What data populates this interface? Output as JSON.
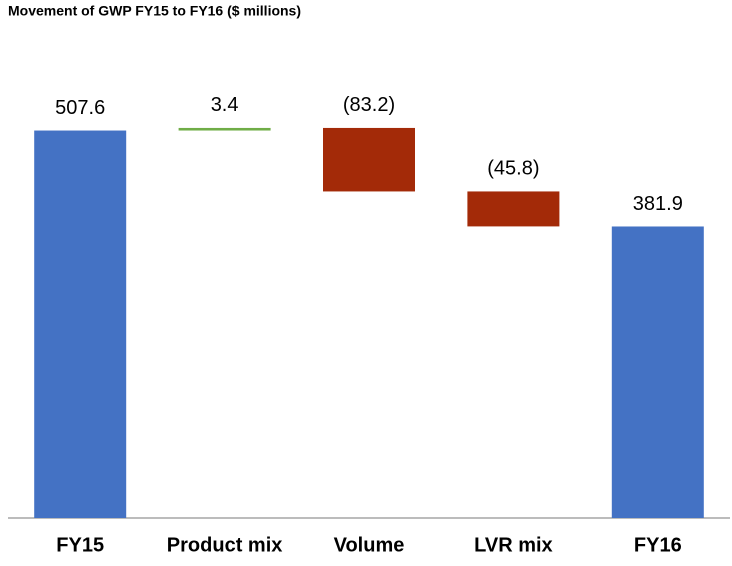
{
  "chart_data": {
    "type": "waterfall",
    "title": "Movement of GWP FY15 to FY16 ($ millions)",
    "categories": [
      "FY15",
      "Product mix",
      "Volume",
      "LVR mix",
      "FY16"
    ],
    "values": [
      507.6,
      3.4,
      -83.2,
      -45.8,
      381.9
    ],
    "value_labels": [
      "507.6",
      "3.4",
      "(83.2)",
      "(45.8)",
      "381.9"
    ],
    "colors": [
      "#4472c4",
      "#70ad47",
      "#a32a08",
      "#a32a08",
      "#4472c4"
    ],
    "ylim": [
      0,
      600
    ]
  }
}
